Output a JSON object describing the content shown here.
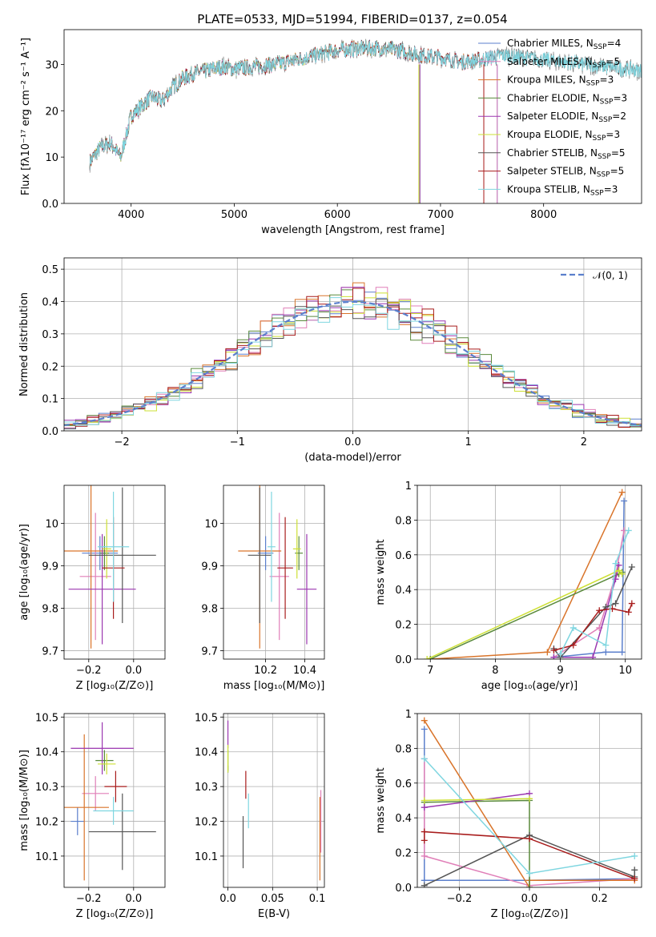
{
  "title": "PLATE=0533, MJD=51994, FIBERID=0137, z=0.054",
  "colors": {
    "Chabrier MILES": "#5b7fcc",
    "Salpeter MILES": "#e07fb8",
    "Kroupa MILES": "#d9742a",
    "Chabrier ELODIE": "#5a8a3c",
    "Salpeter ELODIE": "#9b37b0",
    "Kroupa ELODIE": "#cde034",
    "Chabrier STELIB": "#555555",
    "Salpeter STELIB": "#a81c1c",
    "Kroupa STELIB": "#7fd6e0",
    "data": "#808080"
  },
  "chart_data": [
    {
      "id": "spectrum",
      "type": "line",
      "title": "PLATE=0533, MJD=51994, FIBERID=0137, z=0.054",
      "xlabel": "wavelength [Angstrom, rest frame]",
      "ylabel": "Flux [fλ10⁻¹⁷ erg cm⁻² s⁻¹ A⁻¹]",
      "xlim": [
        3350,
        8950
      ],
      "ylim": [
        0,
        37.5
      ],
      "xticks": [
        4000,
        5000,
        6000,
        7000,
        8000
      ],
      "yticks": [
        0,
        10,
        20,
        30
      ],
      "legend_position": "upper right",
      "grid": false,
      "series": [
        {
          "name": "Chabrier MILES",
          "label": "Chabrier MILES, N",
          "sub": "SSP",
          "tail": "=4",
          "x_end": 7550
        },
        {
          "name": "Salpeter MILES",
          "label": "Salpeter MILES, N",
          "sub": "SSP",
          "tail": "=5",
          "x_end": 7550
        },
        {
          "name": "Kroupa MILES",
          "label": "Kroupa MILES, N",
          "sub": "SSP",
          "tail": "=3",
          "x_end": 7420
        },
        {
          "name": "Chabrier ELODIE",
          "label": "Chabrier ELODIE, N",
          "sub": "SSP",
          "tail": "=3",
          "x_end": 6800
        },
        {
          "name": "Salpeter ELODIE",
          "label": "Salpeter ELODIE, N",
          "sub": "SSP",
          "tail": "=2",
          "x_end": 6800
        },
        {
          "name": "Kroupa ELODIE",
          "label": "Kroupa ELODIE, N",
          "sub": "SSP",
          "tail": "=3",
          "x_end": 6790
        },
        {
          "name": "Chabrier STELIB",
          "label": "Chabrier STELIB, N",
          "sub": "SSP",
          "tail": "=5",
          "x_end": 8950
        },
        {
          "name": "Salpeter STELIB",
          "label": "Salpeter STELIB, N",
          "sub": "SSP",
          "tail": "=5",
          "x_end": 7420
        },
        {
          "name": "Kroupa STELIB",
          "label": "Kroupa STELIB, N",
          "sub": "SSP",
          "tail": "=3",
          "x_end": 8950
        }
      ],
      "continuum": {
        "x": [
          3600,
          3700,
          3800,
          3900,
          4000,
          4100,
          4200,
          4300,
          4400,
          4500,
          4600,
          4700,
          4800,
          4900,
          5000,
          5200,
          5400,
          5600,
          5800,
          6000,
          6200,
          6400,
          6600,
          6800,
          7000,
          7200,
          7400,
          7600,
          7800,
          8000,
          8200,
          8400,
          8600,
          8800,
          8950
        ],
        "y": [
          9,
          12,
          13,
          10,
          19,
          21,
          23,
          22,
          25,
          27,
          28,
          28.5,
          29,
          29.5,
          29,
          29.5,
          30,
          31,
          32,
          33,
          33.5,
          33.5,
          33,
          32,
          31.5,
          30.5,
          31,
          32,
          31.5,
          31,
          30.5,
          30,
          29.5,
          29,
          28.5
        ]
      }
    },
    {
      "id": "residuals",
      "type": "histogram",
      "xlabel": "(data-model)/error",
      "ylabel": "Normed distribution",
      "xlim": [
        -2.5,
        2.5
      ],
      "ylim": [
        0,
        0.535
      ],
      "xticks": [
        -2,
        -1,
        0,
        1,
        2
      ],
      "yticks": [
        0.0,
        0.1,
        0.2,
        0.3,
        0.4,
        0.5
      ],
      "grid": true,
      "legend": "𝒩(0, 1)",
      "bins": 50
    },
    {
      "id": "age-vs-Z",
      "type": "scatter",
      "xlabel": "Z [log₁₀(Z/Z⊙)]",
      "ylabel": "age  [log₁₀(age/yr)]",
      "xlim": [
        -0.31,
        0.14
      ],
      "ylim": [
        9.68,
        10.09
      ],
      "xticks": [
        -0.2,
        0.0
      ],
      "yticks": [
        9.7,
        9.8,
        9.9,
        10.0
      ],
      "grid": true,
      "points": [
        {
          "series": "Chabrier MILES",
          "x": -0.15,
          "xerr": 0.08,
          "y": 9.93,
          "yerr": 0.04
        },
        {
          "series": "Salpeter MILES",
          "x": -0.17,
          "xerr": 0.07,
          "y": 9.875,
          "yerr": 0.15
        },
        {
          "series": "Kroupa MILES",
          "x": -0.19,
          "xerr": 0.12,
          "y": 9.935,
          "yerr": 0.23
        },
        {
          "series": "Chabrier ELODIE",
          "x": -0.13,
          "xerr": 0.02,
          "y": 9.93,
          "yerr": 0.04
        },
        {
          "series": "Salpeter ELODIE",
          "x": -0.14,
          "xerr": 0.15,
          "y": 9.845,
          "yerr": 0.13
        },
        {
          "series": "Kroupa ELODIE",
          "x": -0.12,
          "xerr": 0.02,
          "y": 9.94,
          "yerr": 0.07
        },
        {
          "series": "Chabrier STELIB",
          "x": -0.05,
          "xerr": 0.15,
          "y": 9.925,
          "yerr": 0.16
        },
        {
          "series": "Salpeter STELIB",
          "x": -0.09,
          "xerr": 0.05,
          "y": 9.895,
          "yerr": 0.12
        },
        {
          "series": "Kroupa STELIB",
          "x": -0.09,
          "xerr": 0.07,
          "y": 9.945,
          "yerr": 0.13
        }
      ]
    },
    {
      "id": "age-vs-mass",
      "type": "scatter",
      "xlabel": "mass [log₁₀(M/M⊙)]",
      "ylabel": "",
      "xlim": [
        9.985,
        10.5
      ],
      "ylim": [
        9.68,
        10.09
      ],
      "xticks": [
        10.2,
        10.4
      ],
      "yticks": [
        9.7,
        9.8,
        9.9,
        10.0
      ],
      "grid": true,
      "points": [
        {
          "series": "Chabrier MILES",
          "x": 10.2,
          "xerr": 0.04,
          "y": 9.93,
          "yerr": 0.04
        },
        {
          "series": "Salpeter MILES",
          "x": 10.27,
          "xerr": 0.05,
          "y": 9.875,
          "yerr": 0.15
        },
        {
          "series": "Kroupa MILES",
          "x": 10.17,
          "xerr": 0.11,
          "y": 9.935,
          "yerr": 0.23
        },
        {
          "series": "Chabrier ELODIE",
          "x": 10.37,
          "xerr": 0.02,
          "y": 9.93,
          "yerr": 0.04
        },
        {
          "series": "Salpeter ELODIE",
          "x": 10.41,
          "xerr": 0.05,
          "y": 9.845,
          "yerr": 0.13
        },
        {
          "series": "Kroupa ELODIE",
          "x": 10.36,
          "xerr": 0.02,
          "y": 9.94,
          "yerr": 0.07
        },
        {
          "series": "Chabrier STELIB",
          "x": 10.17,
          "xerr": 0.06,
          "y": 9.925,
          "yerr": 0.16
        },
        {
          "series": "Salpeter STELIB",
          "x": 10.3,
          "xerr": 0.04,
          "y": 9.895,
          "yerr": 0.12
        },
        {
          "series": "Kroupa STELIB",
          "x": 10.23,
          "xerr": 0.02,
          "y": 9.945,
          "yerr": 0.13
        }
      ]
    },
    {
      "id": "weight-vs-age",
      "type": "line",
      "xlabel": "age  [log₁₀(age/yr)]",
      "ylabel": "mass weight",
      "xlim": [
        6.8,
        10.25
      ],
      "ylim": [
        0,
        1.0
      ],
      "xticks": [
        7,
        8,
        9,
        10
      ],
      "yticks": [
        0.0,
        0.2,
        0.4,
        0.6,
        0.8,
        1.0
      ],
      "grid": true,
      "series": [
        {
          "name": "Chabrier MILES",
          "x": [
            8.9,
            9.7,
            9.95,
            9.98
          ],
          "y": [
            0.01,
            0.04,
            0.04,
            0.91
          ]
        },
        {
          "name": "Salpeter MILES",
          "x": [
            8.9,
            9.6,
            9.85,
            9.98
          ],
          "y": [
            0.01,
            0.18,
            0.48,
            0.74
          ]
        },
        {
          "name": "Kroupa MILES",
          "x": [
            7.0,
            8.8,
            9.95
          ],
          "y": [
            0.0,
            0.04,
            0.96
          ]
        },
        {
          "name": "Chabrier ELODIE",
          "x": [
            7.0,
            9.9,
            9.95
          ],
          "y": [
            0.0,
            0.49,
            0.5
          ]
        },
        {
          "name": "Salpeter ELODIE",
          "x": [
            8.9,
            9.5,
            9.85,
            9.9
          ],
          "y": [
            0.01,
            0.01,
            0.46,
            0.54
          ]
        },
        {
          "name": "Kroupa ELODIE",
          "x": [
            6.95,
            9.9,
            9.95
          ],
          "y": [
            0.0,
            0.51,
            0.49
          ]
        },
        {
          "name": "Chabrier STELIB",
          "x": [
            8.9,
            9.0,
            9.7,
            9.85,
            10.1
          ],
          "y": [
            0.06,
            0.01,
            0.3,
            0.32,
            0.53
          ]
        },
        {
          "name": "Salpeter STELIB",
          "x": [
            8.9,
            9.2,
            9.6,
            9.8,
            10.05,
            10.1
          ],
          "y": [
            0.05,
            0.08,
            0.28,
            0.29,
            0.27,
            0.32
          ]
        },
        {
          "name": "Kroupa STELIB",
          "x": [
            9.0,
            9.2,
            9.7,
            9.85,
            10.05
          ],
          "y": [
            0.03,
            0.18,
            0.08,
            0.55,
            0.74
          ]
        }
      ]
    },
    {
      "id": "mass-vs-Z",
      "type": "scatter",
      "xlabel": "Z [log₁₀(Z/Z⊙)]",
      "ylabel": "mass [log₁₀(M/M⊙)]",
      "xlim": [
        -0.31,
        0.14
      ],
      "ylim": [
        10.01,
        10.51
      ],
      "xticks": [
        -0.2,
        0.0
      ],
      "yticks": [
        10.1,
        10.2,
        10.3,
        10.4,
        10.5
      ],
      "grid": true,
      "points": [
        {
          "series": "Chabrier MILES",
          "x": -0.25,
          "xerr": 0.03,
          "y": 10.2,
          "yerr": 0.04
        },
        {
          "series": "Salpeter MILES",
          "x": -0.17,
          "xerr": 0.06,
          "y": 10.28,
          "yerr": 0.05
        },
        {
          "series": "Kroupa MILES",
          "x": -0.22,
          "xerr": 0.11,
          "y": 10.24,
          "yerr": 0.21
        },
        {
          "series": "Chabrier ELODIE",
          "x": -0.13,
          "xerr": 0.04,
          "y": 10.375,
          "yerr": 0.03
        },
        {
          "series": "Salpeter ELODIE",
          "x": -0.14,
          "xerr": 0.14,
          "y": 10.41,
          "yerr": 0.075
        },
        {
          "series": "Kroupa ELODIE",
          "x": -0.12,
          "xerr": 0.04,
          "y": 10.365,
          "yerr": 0.03
        },
        {
          "series": "Chabrier STELIB",
          "x": -0.05,
          "xerr": 0.15,
          "y": 10.17,
          "yerr": 0.11
        },
        {
          "series": "Salpeter STELIB",
          "x": -0.08,
          "xerr": 0.05,
          "y": 10.3,
          "yerr": 0.045
        },
        {
          "series": "Kroupa STELIB",
          "x": -0.09,
          "xerr": 0.09,
          "y": 10.23,
          "yerr": 0.04
        }
      ]
    },
    {
      "id": "mass-vs-EBV",
      "type": "scatter",
      "xlabel": "E(B-V)",
      "ylabel": "",
      "xlim": [
        -0.005,
        0.108
      ],
      "ylim": [
        10.01,
        10.51
      ],
      "xticks": [
        0.0,
        0.05,
        0.1
      ],
      "yticks": [
        10.1,
        10.2,
        10.3,
        10.4,
        10.5
      ],
      "grid": true,
      "points": [
        {
          "series": "Chabrier MILES",
          "x": 0.0,
          "xerr": 0,
          "y": 10.35,
          "yerr": 0.01
        },
        {
          "series": "Salpeter MILES",
          "x": 0.104,
          "xerr": 0,
          "y": 10.2,
          "yerr": 0.09
        },
        {
          "series": "Kroupa MILES",
          "x": 0.103,
          "xerr": 0,
          "y": 10.15,
          "yerr": 0.12
        },
        {
          "series": "Chabrier ELODIE",
          "x": 0.0,
          "xerr": 0,
          "y": 10.375,
          "yerr": 0.03
        },
        {
          "series": "Salpeter ELODIE",
          "x": 0.0,
          "xerr": 0,
          "y": 10.45,
          "yerr": 0.04
        },
        {
          "series": "Kroupa ELODIE",
          "x": 0.0,
          "xerr": 0,
          "y": 10.38,
          "yerr": 0.04
        },
        {
          "series": "Chabrier STELIB",
          "x": 0.017,
          "xerr": 0,
          "y": 10.14,
          "yerr": 0.075
        },
        {
          "series": "Salpeter STELIB",
          "x": 0.02,
          "xerr": 0,
          "y": 10.305,
          "yerr": 0.04
        },
        {
          "series": "Kroupa STELIB",
          "x": 0.023,
          "xerr": 0,
          "y": 10.23,
          "yerr": 0.05
        }
      ]
    },
    {
      "id": "weight-vs-Z",
      "type": "line",
      "xlabel": "Z [log₁₀(Z/Z⊙)]",
      "ylabel": "mass weight",
      "xlim": [
        -0.32,
        0.32
      ],
      "ylim": [
        0,
        1.0
      ],
      "xticks": [
        -0.2,
        0.0,
        0.2
      ],
      "yticks": [
        0.0,
        0.2,
        0.4,
        0.6,
        0.8,
        1.0
      ],
      "grid": true,
      "series": [
        {
          "name": "Chabrier MILES",
          "x": [
            -0.3,
            -0.3,
            0.0,
            0.3
          ],
          "y": [
            0.91,
            0.04,
            0.04,
            0.05
          ]
        },
        {
          "name": "Salpeter MILES",
          "x": [
            -0.3,
            -0.3,
            0.0,
            0.3
          ],
          "y": [
            0.74,
            0.18,
            0.01,
            0.05
          ]
        },
        {
          "name": "Kroupa MILES",
          "x": [
            -0.3,
            0.0,
            0.0,
            0.3
          ],
          "y": [
            0.96,
            0.0,
            0.04,
            0.04
          ]
        },
        {
          "name": "Chabrier ELODIE",
          "x": [
            -0.3,
            0.0,
            0.0
          ],
          "y": [
            0.49,
            0.5,
            0.0
          ]
        },
        {
          "name": "Salpeter ELODIE",
          "x": [
            -0.3,
            0.0
          ],
          "y": [
            0.46,
            0.54
          ]
        },
        {
          "name": "Kroupa ELODIE",
          "x": [
            -0.3,
            0.0
          ],
          "y": [
            0.5,
            0.51
          ]
        },
        {
          "name": "Chabrier STELIB",
          "x": [
            -0.3,
            0.0,
            0.3,
            0.3
          ],
          "y": [
            0.01,
            0.3,
            0.06,
            0.1
          ]
        },
        {
          "name": "Salpeter STELIB",
          "x": [
            -0.3,
            -0.3,
            0.0,
            0.3
          ],
          "y": [
            0.27,
            0.32,
            0.28,
            0.05
          ]
        },
        {
          "name": "Kroupa STELIB",
          "x": [
            -0.3,
            0.0,
            0.3
          ],
          "y": [
            0.74,
            0.08,
            0.18
          ]
        }
      ]
    }
  ]
}
